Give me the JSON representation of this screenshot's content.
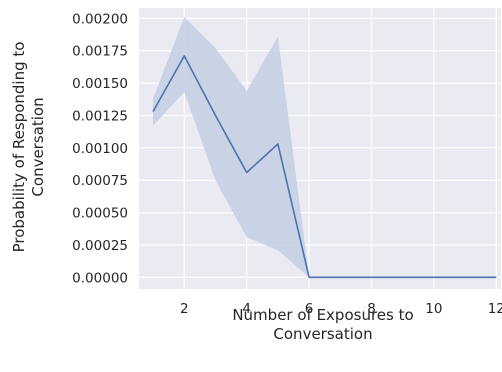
{
  "chart_data": {
    "type": "line",
    "title": "",
    "xlabel_lines": [
      "Number of Exposures to",
      "Conversation"
    ],
    "ylabel_lines": [
      "Probability of Responding to",
      "Conversation"
    ],
    "xlim": [
      0.55,
      12.15
    ],
    "ylim": [
      -9e-05,
      0.00208
    ],
    "x_ticks": [
      2,
      4,
      6,
      8,
      10,
      12
    ],
    "y_ticks": [
      0.0,
      0.00025,
      0.0005,
      0.00075,
      0.001,
      0.00125,
      0.0015,
      0.00175,
      0.002
    ],
    "y_tick_labels": [
      "0.00000",
      "0.00025",
      "0.00050",
      "0.00075",
      "0.00100",
      "0.00125",
      "0.00150",
      "0.00175",
      "0.00200"
    ],
    "grid": true,
    "series": [
      {
        "x": [
          1,
          2,
          3,
          4,
          5,
          6,
          7,
          8,
          9,
          10,
          11,
          12
        ],
        "y": [
          0.00128,
          0.00171,
          0.00125,
          0.00081,
          0.00103,
          0.0,
          0.0,
          0.0,
          0.0,
          0.0,
          0.0,
          0.0
        ],
        "ci_low": [
          0.00117,
          0.00143,
          0.00075,
          0.00031,
          0.00021,
          0.0,
          0.0,
          0.0,
          0.0,
          0.0,
          0.0,
          0.0
        ],
        "ci_high": [
          0.00138,
          0.00201,
          0.00177,
          0.00144,
          0.00186,
          0.0,
          0.0,
          0.0,
          0.0,
          0.0,
          0.0,
          0.0
        ]
      }
    ],
    "colors": {
      "background": "#eaeaf2",
      "grid": "#ffffff",
      "line": "#4c72b0",
      "band": "#c7cfe4",
      "text": "#262626"
    }
  }
}
